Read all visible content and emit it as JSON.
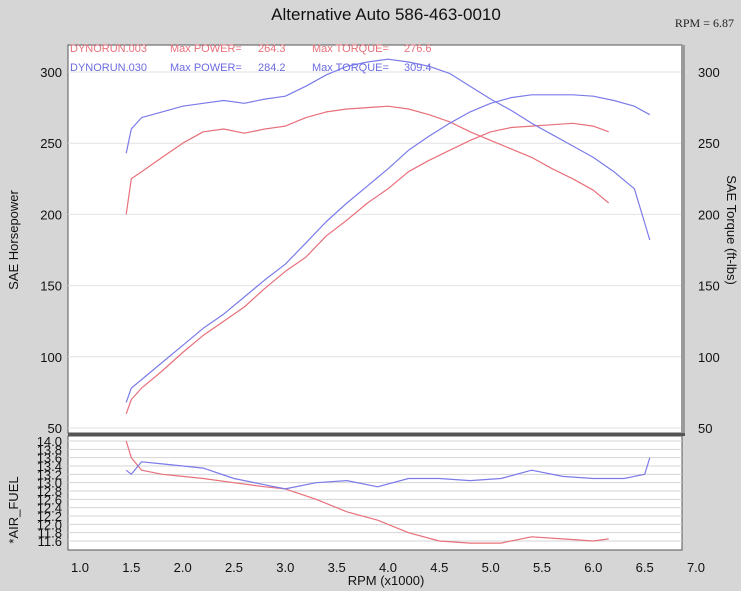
{
  "chart_data": {
    "type": "line",
    "title": "Alternative Auto 586-463-0010",
    "rpm_readout": "RPM = 6.87",
    "xlabel": "RPM (x1000)",
    "xlim": [
      1.0,
      7.0
    ],
    "x_ticks": [
      "1.0",
      "1.5",
      "2.0",
      "2.5",
      "3.0",
      "3.5",
      "4.0",
      "4.5",
      "5.0",
      "5.5",
      "6.0",
      "6.5",
      "7.0"
    ],
    "upper": {
      "ylabel_left": "SAE Horsepower",
      "ylabel_right": "SAE Torque (ft-lbs)",
      "ylim": [
        45,
        310
      ],
      "y_ticks": [
        "50",
        "100",
        "150",
        "200",
        "250",
        "300"
      ]
    },
    "lower": {
      "ylabel": "*AIR_FUEL",
      "ylim": [
        11.5,
        14.05
      ],
      "y_ticks": [
        "14.0",
        "13.8",
        "13.6",
        "13.4",
        "13.2",
        "13.0",
        "12.8",
        "12.6",
        "12.4",
        "12.2",
        "12.0",
        "11.8",
        "11.6"
      ]
    },
    "legend": [
      {
        "run": "DYNORUN.003",
        "power_label": "Max POWER=",
        "power": "264.3",
        "torque_label": "Max TORQUE=",
        "torque": "276.6",
        "color": "#e8707a"
      },
      {
        "run": "DYNORUN.030",
        "power_label": "Max POWER=",
        "power": "284.2",
        "torque_label": "Max TORQUE=",
        "torque": "309.4",
        "color": "#7b7bea"
      }
    ],
    "series": [
      {
        "run": "DYNORUN.003",
        "kind": "power",
        "color": "#e8707a",
        "x": [
          1.45,
          1.5,
          1.6,
          1.8,
          2.0,
          2.2,
          2.4,
          2.6,
          2.8,
          3.0,
          3.2,
          3.4,
          3.6,
          3.8,
          4.0,
          4.2,
          4.4,
          4.6,
          4.8,
          5.0,
          5.2,
          5.4,
          5.6,
          5.8,
          6.0,
          6.15
        ],
        "y": [
          60,
          70,
          78,
          90,
          103,
          115,
          125,
          135,
          148,
          160,
          170,
          185,
          196,
          208,
          218,
          230,
          238,
          245,
          252,
          258,
          261,
          262,
          263,
          264,
          262,
          258
        ]
      },
      {
        "run": "DYNORUN.003",
        "kind": "torque",
        "color": "#e8707a",
        "x": [
          1.45,
          1.5,
          1.6,
          1.8,
          2.0,
          2.2,
          2.4,
          2.6,
          2.8,
          3.0,
          3.2,
          3.4,
          3.6,
          3.8,
          4.0,
          4.2,
          4.4,
          4.6,
          4.8,
          5.0,
          5.2,
          5.4,
          5.6,
          5.8,
          6.0,
          6.15
        ],
        "y": [
          200,
          225,
          230,
          240,
          250,
          258,
          260,
          257,
          260,
          262,
          268,
          272,
          274,
          275,
          276,
          274,
          270,
          265,
          258,
          252,
          246,
          240,
          232,
          225,
          217,
          208
        ]
      },
      {
        "run": "DYNORUN.030",
        "kind": "power",
        "color": "#7b7bea",
        "x": [
          1.45,
          1.5,
          1.6,
          1.8,
          2.0,
          2.2,
          2.4,
          2.6,
          2.8,
          3.0,
          3.2,
          3.4,
          3.6,
          3.8,
          4.0,
          4.2,
          4.4,
          4.6,
          4.8,
          5.0,
          5.2,
          5.4,
          5.6,
          5.8,
          6.0,
          6.2,
          6.4,
          6.55
        ],
        "y": [
          68,
          78,
          84,
          96,
          108,
          120,
          130,
          142,
          154,
          165,
          180,
          195,
          208,
          220,
          232,
          245,
          255,
          264,
          272,
          278,
          282,
          284,
          284,
          284,
          283,
          280,
          276,
          270
        ]
      },
      {
        "run": "DYNORUN.030",
        "kind": "torque",
        "color": "#7b7bea",
        "x": [
          1.45,
          1.5,
          1.6,
          1.8,
          2.0,
          2.2,
          2.4,
          2.6,
          2.8,
          3.0,
          3.2,
          3.4,
          3.6,
          3.8,
          4.0,
          4.2,
          4.4,
          4.6,
          4.8,
          5.0,
          5.2,
          5.4,
          5.6,
          5.8,
          6.0,
          6.2,
          6.4,
          6.55
        ],
        "y": [
          243,
          260,
          268,
          272,
          276,
          278,
          280,
          278,
          281,
          283,
          290,
          298,
          304,
          307,
          309,
          307,
          304,
          299,
          290,
          281,
          273,
          264,
          256,
          248,
          240,
          230,
          218,
          182
        ]
      },
      {
        "run": "DYNORUN.003",
        "kind": "air_fuel",
        "color": "#e8707a",
        "x": [
          1.45,
          1.5,
          1.6,
          1.8,
          2.0,
          2.2,
          2.5,
          2.8,
          3.0,
          3.3,
          3.6,
          3.9,
          4.2,
          4.5,
          4.8,
          5.1,
          5.4,
          5.7,
          6.0,
          6.15
        ],
        "y": [
          14.0,
          13.6,
          13.3,
          13.2,
          13.15,
          13.1,
          13.0,
          12.9,
          12.85,
          12.6,
          12.3,
          12.1,
          11.8,
          11.6,
          11.55,
          11.55,
          11.7,
          11.65,
          11.6,
          11.65
        ]
      },
      {
        "run": "DYNORUN.030",
        "kind": "air_fuel",
        "color": "#7b7bea",
        "x": [
          1.45,
          1.5,
          1.6,
          1.8,
          2.0,
          2.2,
          2.5,
          2.8,
          3.0,
          3.3,
          3.6,
          3.9,
          4.2,
          4.5,
          4.8,
          5.1,
          5.4,
          5.7,
          6.0,
          6.3,
          6.5,
          6.55
        ],
        "y": [
          13.3,
          13.2,
          13.5,
          13.45,
          13.4,
          13.35,
          13.1,
          12.95,
          12.85,
          13.0,
          13.05,
          12.9,
          13.1,
          13.1,
          13.05,
          13.1,
          13.3,
          13.15,
          13.1,
          13.1,
          13.2,
          13.6
        ]
      }
    ]
  }
}
